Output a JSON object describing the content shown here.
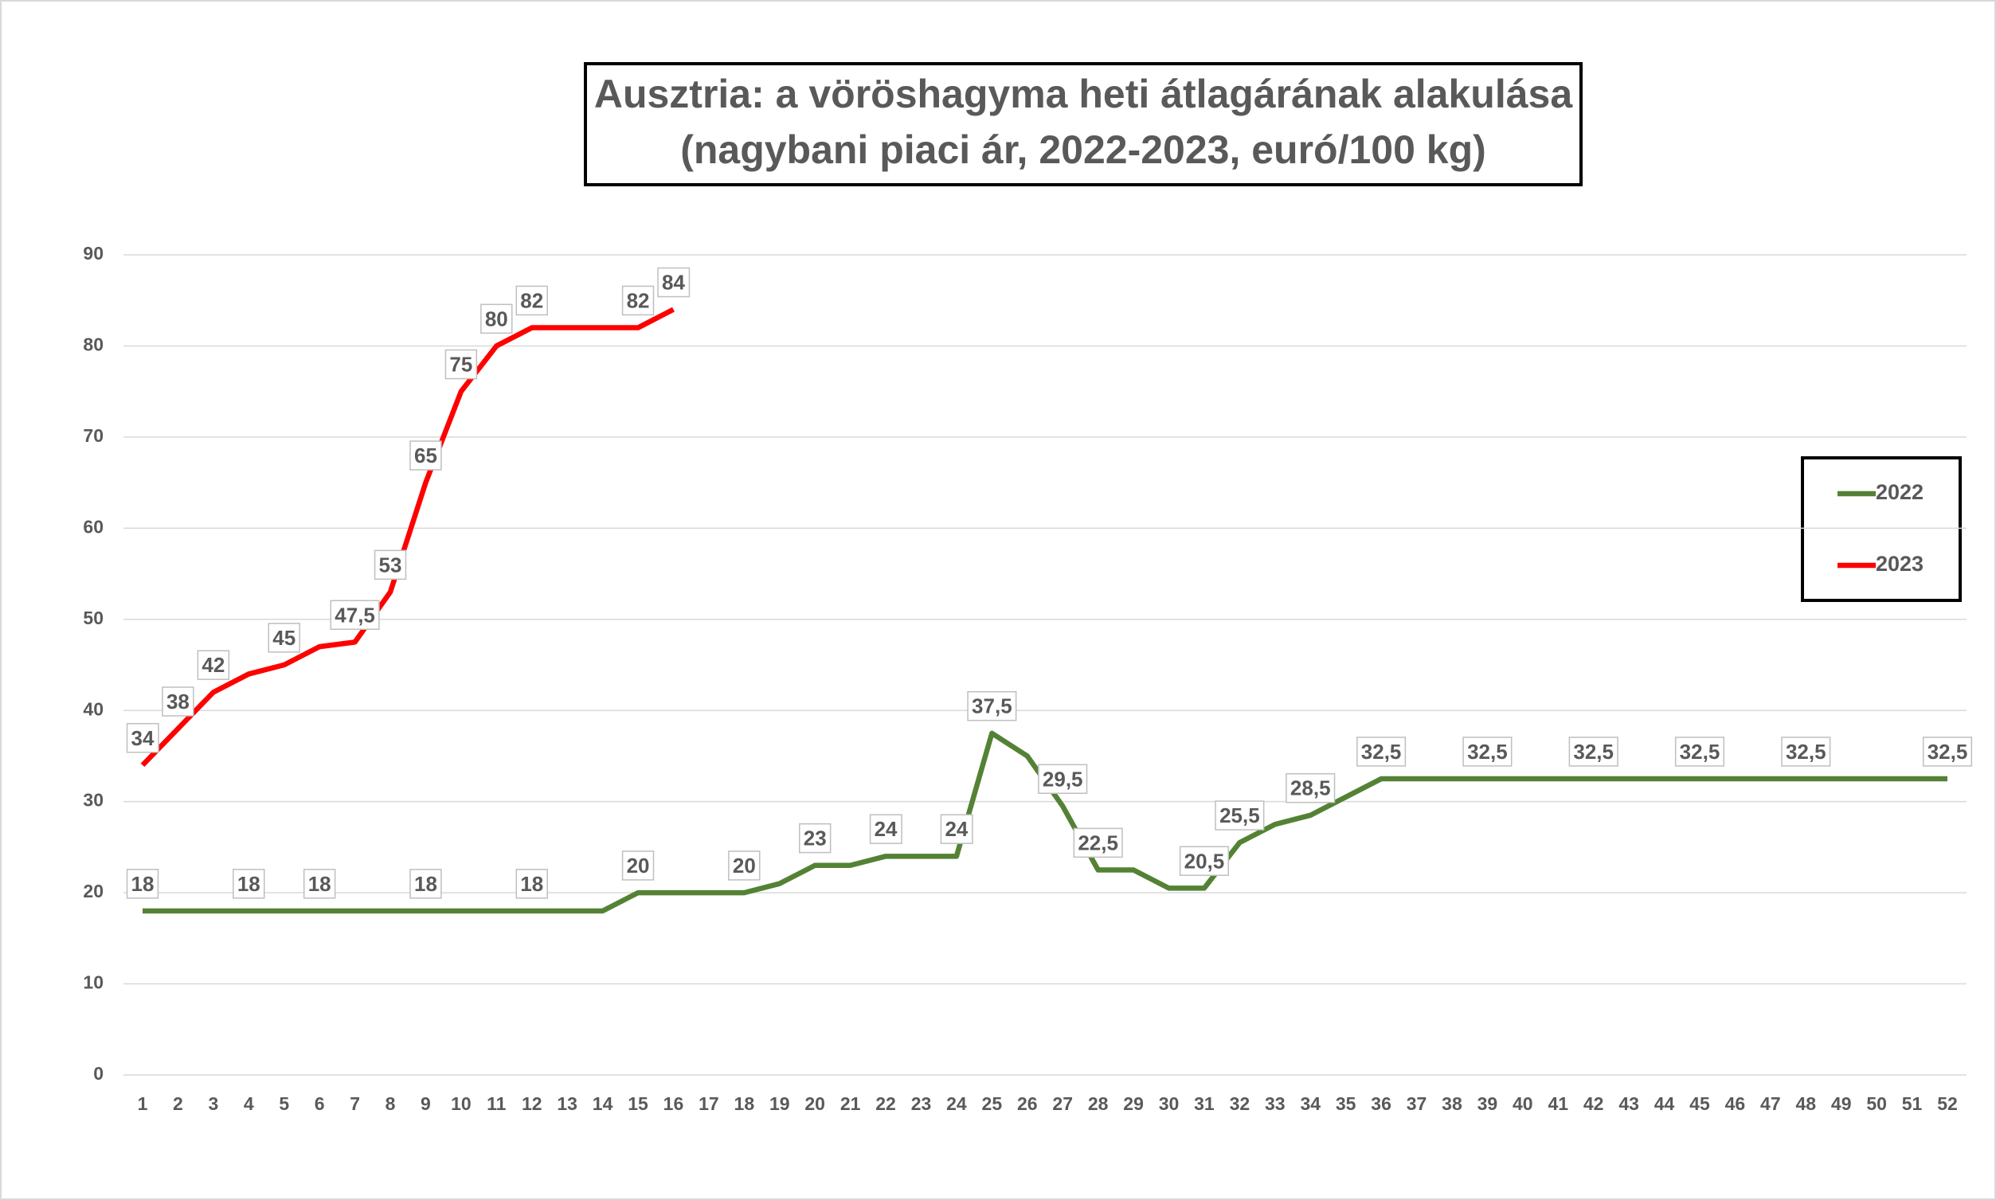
{
  "chart_data": {
    "type": "line",
    "title": "Ausztria: a vöröshagyma heti átlagárának alakulása",
    "subtitle": "(nagybani piaci ár, 2022-2023, euró/100 kg)",
    "categories": [
      "1",
      "2",
      "3",
      "4",
      "5",
      "6",
      "7",
      "8",
      "9",
      "10",
      "11",
      "12",
      "13",
      "14",
      "15",
      "16",
      "17",
      "18",
      "19",
      "20",
      "21",
      "22",
      "23",
      "24",
      "25",
      "26",
      "27",
      "28",
      "29",
      "30",
      "31",
      "32",
      "33",
      "34",
      "35",
      "36",
      "37",
      "38",
      "39",
      "40",
      "41",
      "42",
      "43",
      "44",
      "45",
      "46",
      "47",
      "48",
      "49",
      "50",
      "51",
      "52"
    ],
    "series": [
      {
        "name": "2022",
        "color": "#548235",
        "values": [
          18,
          18,
          18,
          18,
          18,
          18,
          18,
          18,
          18,
          18,
          18,
          18,
          18,
          18,
          20,
          20,
          20,
          20,
          21,
          23,
          23,
          24,
          24,
          24,
          37.5,
          35,
          29.5,
          22.5,
          22.5,
          20.5,
          20.5,
          25.5,
          27.5,
          28.5,
          30.5,
          32.5,
          32.5,
          32.5,
          32.5,
          32.5,
          32.5,
          32.5,
          32.5,
          32.5,
          32.5,
          32.5,
          32.5,
          32.5,
          32.5,
          32.5,
          32.5,
          32.5
        ],
        "value_labels": [
          "18",
          null,
          null,
          "18",
          null,
          "18",
          null,
          null,
          "18",
          null,
          null,
          "18",
          null,
          null,
          "20",
          null,
          null,
          "20",
          null,
          "23",
          null,
          "24",
          null,
          "24",
          "37,5",
          null,
          "29,5",
          "22,5",
          null,
          null,
          "20,5",
          "25,5",
          null,
          "28,5",
          null,
          "32,5",
          null,
          null,
          "32,5",
          null,
          null,
          "32,5",
          null,
          null,
          "32,5",
          null,
          null,
          "32,5",
          null,
          null,
          null,
          "32,5"
        ]
      },
      {
        "name": "2023",
        "color": "#ff0000",
        "values": [
          34,
          38,
          42,
          44,
          45,
          47,
          47.5,
          53,
          65,
          75,
          80,
          82,
          82,
          82,
          82,
          84,
          null,
          null,
          null,
          null,
          null,
          null,
          null,
          null,
          null,
          null,
          null,
          null,
          null,
          null,
          null,
          null,
          null,
          null,
          null,
          null,
          null,
          null,
          null,
          null,
          null,
          null,
          null,
          null,
          null,
          null,
          null,
          null,
          null,
          null,
          null,
          null
        ],
        "value_labels": [
          "34",
          "38",
          "42",
          null,
          "45",
          null,
          "47,5",
          "53",
          "65",
          "75",
          "80",
          "82",
          null,
          null,
          "82",
          "84",
          null,
          null,
          null,
          null,
          null,
          null,
          null,
          null,
          null,
          null,
          null,
          null,
          null,
          null,
          null,
          null,
          null,
          null,
          null,
          null,
          null,
          null,
          null,
          null,
          null,
          null,
          null,
          null,
          null,
          null,
          null,
          null,
          null,
          null,
          null,
          null
        ]
      }
    ],
    "ylim": [
      0,
      90
    ],
    "yticks": [
      0,
      10,
      20,
      30,
      40,
      50,
      60,
      70,
      80,
      90
    ],
    "grid": true,
    "legend": "right"
  }
}
